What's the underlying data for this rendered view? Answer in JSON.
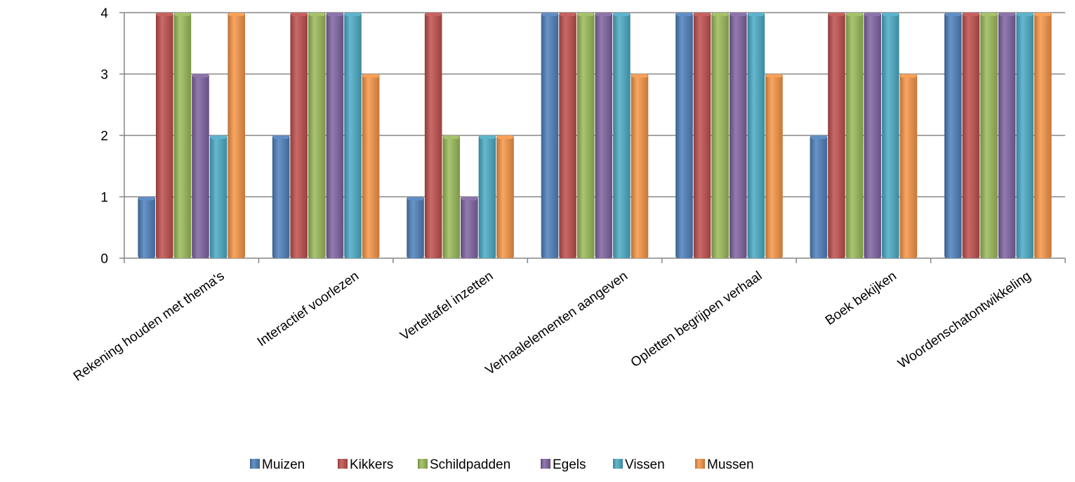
{
  "chart_data": {
    "type": "bar",
    "categories": [
      "Rekening houden met thema's",
      "Interactief voorlezen",
      "Verteltafel inzetten",
      "Verhaalelementen aangeven",
      "Opletten begrijpen verhaal",
      "Boek bekijken",
      "Woordenschatontwikkeling"
    ],
    "series": [
      {
        "name": "Muizen",
        "color": "#4F81BD",
        "values": [
          1,
          2,
          1,
          4,
          4,
          2,
          4
        ]
      },
      {
        "name": "Kikkers",
        "color": "#C0504D",
        "values": [
          4,
          4,
          4,
          4,
          4,
          4,
          4
        ]
      },
      {
        "name": "Schildpadden",
        "color": "#9BBB59",
        "values": [
          4,
          4,
          2,
          4,
          4,
          4,
          4
        ]
      },
      {
        "name": "Egels",
        "color": "#8064A2",
        "values": [
          3,
          4,
          1,
          4,
          4,
          4,
          4
        ]
      },
      {
        "name": "Vissen",
        "color": "#4BACC6",
        "values": [
          2,
          4,
          2,
          4,
          4,
          4,
          4
        ]
      },
      {
        "name": "Mussen",
        "color": "#F79646",
        "values": [
          4,
          3,
          2,
          3,
          3,
          3,
          4
        ]
      }
    ],
    "yticks": [
      "0",
      "1",
      "2",
      "3",
      "4"
    ],
    "ylim": [
      0,
      4
    ],
    "grid": true,
    "legend": "bottom"
  }
}
